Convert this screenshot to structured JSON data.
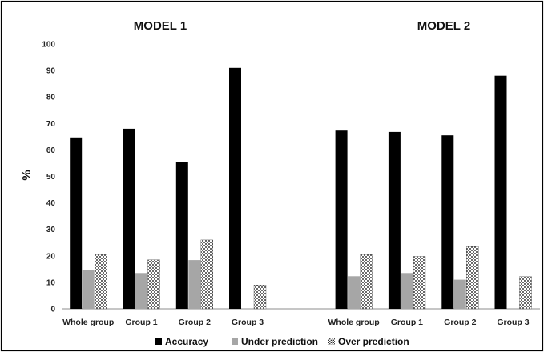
{
  "chart_data": {
    "type": "bar",
    "ylabel": "%",
    "ylim": [
      0,
      100
    ],
    "yticks": [
      0,
      10,
      20,
      30,
      40,
      50,
      60,
      70,
      80,
      90,
      100
    ],
    "grid": false,
    "legend_position": "bottom",
    "series_styles": [
      {
        "fill": "#000000",
        "pattern": "solid"
      },
      {
        "fill": "#a6a6a6",
        "pattern": "solid"
      },
      {
        "fill": "#ffffff",
        "pattern": "dots"
      }
    ],
    "legend": {
      "entries": [
        "Accuracy",
        "Under prediction",
        "Over prediction"
      ]
    },
    "panels": [
      {
        "title": "MODEL 1",
        "categories": [
          "Whole group",
          "Group 1",
          "Group 2",
          "Group 3"
        ],
        "series": [
          {
            "name": "Accuracy",
            "values": [
              64.7,
              68.0,
              55.6,
              91.0
            ]
          },
          {
            "name": "Under prediction",
            "values": [
              14.8,
              13.5,
              18.4,
              0
            ]
          },
          {
            "name": "Over prediction",
            "values": [
              20.5,
              18.5,
              26.0,
              9.0
            ]
          }
        ]
      },
      {
        "title": "MODEL 2",
        "categories": [
          "Whole group",
          "Group 1",
          "Group 2",
          "Group 3"
        ],
        "series": [
          {
            "name": "Accuracy",
            "values": [
              67.3,
              66.8,
              65.5,
              88.0
            ]
          },
          {
            "name": "Under prediction",
            "values": [
              12.3,
              13.5,
              11.0,
              0
            ]
          },
          {
            "name": "Over prediction",
            "values": [
              20.5,
              19.8,
              23.5,
              12.2
            ]
          }
        ]
      }
    ]
  }
}
